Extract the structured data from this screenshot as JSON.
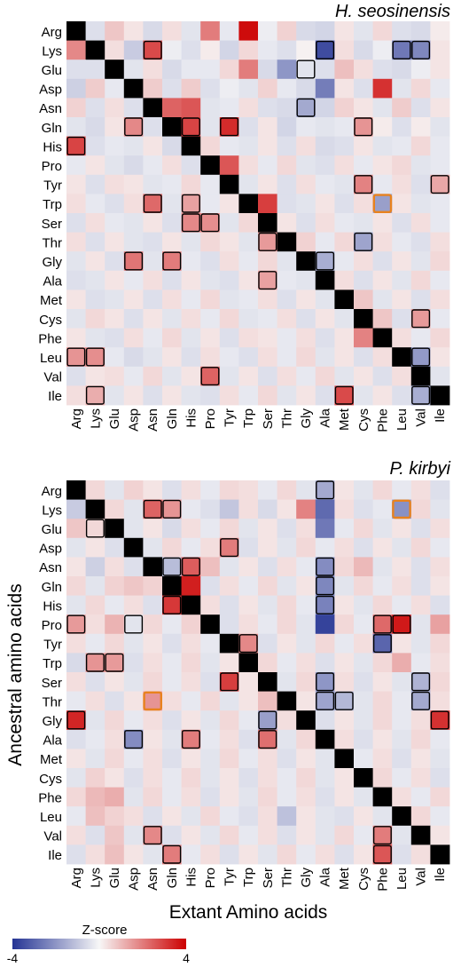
{
  "labels": {
    "y_axis": "Ancestral amino acids",
    "x_axis": "Extant Amino acids",
    "colorbar_title": "Z-score",
    "colorbar_min": "-4",
    "colorbar_max": "4"
  },
  "colors": {
    "negative": "#253494",
    "neutral": "#f7f7f7",
    "positive": "#cc0000",
    "diagonal": "#000000",
    "box_significant": "#000000",
    "box_highlight": "#e8821e"
  },
  "chart_data": [
    {
      "type": "heatmap",
      "title": "H. seosinensis",
      "rows": [
        "Arg",
        "Lys",
        "Glu",
        "Asp",
        "Asn",
        "Gln",
        "His",
        "Pro",
        "Tyr",
        "Trp",
        "Ser",
        "Thr",
        "Gly",
        "Ala",
        "Met",
        "Cys",
        "Phe",
        "Leu",
        "Val",
        "Ile"
      ],
      "cols": [
        "Arg",
        "Lys",
        "Glu",
        "Asp",
        "Asn",
        "Gln",
        "His",
        "Pro",
        "Tyr",
        "Trp",
        "Ser",
        "Thr",
        "Gly",
        "Ala",
        "Met",
        "Cys",
        "Phe",
        "Leu",
        "Val",
        "Ile"
      ],
      "zlim": [
        -4,
        4
      ],
      "z": [
        [
          null,
          -0.5,
          0.8,
          0.3,
          -0.6,
          0.4,
          -0.4,
          2.0,
          -0.3,
          3.8,
          -0.2,
          0.6,
          -0.6,
          -0.7,
          0.3,
          -0.4,
          0.5,
          -0.5,
          -0.6,
          0.2
        ],
        [
          1.8,
          null,
          0.4,
          -0.9,
          2.8,
          -0.2,
          -0.5,
          0.2,
          -0.7,
          0.5,
          -0.3,
          -0.5,
          0.1,
          -3.5,
          0.4,
          -0.6,
          -0.2,
          -2.6,
          -2.3,
          0.3
        ],
        [
          -0.5,
          -0.5,
          null,
          -0.4,
          0.4,
          -0.6,
          -0.3,
          -0.3,
          0.5,
          2.0,
          -0.6,
          -2.0,
          -0.4,
          -0.5,
          0.9,
          0.4,
          -0.5,
          -0.6,
          -0.2,
          0.3
        ],
        [
          -0.8,
          0.7,
          -0.3,
          null,
          0.7,
          -0.5,
          0.7,
          -0.5,
          -0.2,
          -0.4,
          0.6,
          -0.3,
          -0.6,
          -2.5,
          0.3,
          -0.5,
          3.2,
          -0.4,
          0.5,
          -0.3
        ],
        [
          0.6,
          -0.5,
          0.4,
          -0.5,
          null,
          2.4,
          2.6,
          -0.4,
          -0.3,
          0.4,
          -0.5,
          -0.6,
          -1.6,
          -0.7,
          0.6,
          0.3,
          -0.4,
          0.7,
          -0.5,
          0.3
        ],
        [
          -0.4,
          -0.6,
          0.3,
          1.8,
          -0.5,
          null,
          2.9,
          -0.4,
          3.3,
          -0.5,
          0.3,
          -0.7,
          -0.3,
          -0.4,
          -0.3,
          1.6,
          0.2,
          -0.5,
          0.2,
          -0.4
        ],
        [
          2.9,
          -0.5,
          -0.3,
          -0.4,
          0.3,
          -0.6,
          null,
          0.5,
          -0.3,
          -0.4,
          0.3,
          -0.5,
          0.4,
          -0.6,
          -0.5,
          0.3,
          -0.4,
          -0.3,
          0.5,
          -0.3
        ],
        [
          -0.3,
          0.3,
          -0.4,
          -0.6,
          -0.3,
          0.4,
          -0.5,
          null,
          2.6,
          0.4,
          -0.3,
          0.5,
          -0.4,
          -0.5,
          0.4,
          -0.3,
          0.3,
          0.5,
          -0.4,
          -0.3
        ],
        [
          0.3,
          -0.5,
          0.4,
          0.3,
          -0.4,
          -0.3,
          0.5,
          -0.3,
          null,
          -0.4,
          0.3,
          -0.5,
          0.4,
          -0.3,
          -0.4,
          1.9,
          -0.3,
          0.4,
          -0.5,
          1.3
        ],
        [
          0.4,
          -0.3,
          -0.5,
          0.4,
          2.3,
          -0.4,
          1.4,
          -0.3,
          0.3,
          null,
          3.0,
          -0.5,
          -0.4,
          0.3,
          -0.5,
          0.4,
          -1.8,
          0.3,
          -0.4,
          -0.3
        ],
        [
          -0.5,
          0.4,
          -0.3,
          -0.4,
          0.3,
          -0.5,
          1.8,
          1.7,
          -0.4,
          0.5,
          null,
          0.3,
          -0.5,
          0.4,
          -0.3,
          -0.4,
          0.3,
          -0.5,
          0.4,
          -0.3
        ],
        [
          0.4,
          -0.5,
          0.3,
          -0.4,
          -0.5,
          0.3,
          -0.4,
          0.5,
          0.3,
          -0.4,
          1.5,
          null,
          0.6,
          -0.3,
          0.5,
          -1.7,
          0.4,
          -0.3,
          -0.5,
          0.4
        ],
        [
          -0.4,
          0.3,
          -0.5,
          2.1,
          -0.4,
          2.0,
          -0.3,
          -0.5,
          0.4,
          -0.3,
          0.5,
          -0.4,
          null,
          -1.5,
          -0.3,
          0.4,
          -0.5,
          0.3,
          -0.4,
          0.5
        ],
        [
          -0.5,
          -0.4,
          0.3,
          -0.3,
          0.4,
          -0.5,
          0.3,
          -0.4,
          -0.5,
          0.3,
          1.4,
          -0.3,
          -0.4,
          null,
          0.4,
          -0.5,
          0.3,
          -0.4,
          0.5,
          -0.3
        ],
        [
          0.3,
          -0.5,
          -0.4,
          0.3,
          -0.5,
          0.4,
          -0.3,
          0.5,
          -0.4,
          -0.3,
          0.4,
          -0.5,
          0.3,
          -0.4,
          null,
          0.8,
          -0.4,
          0.3,
          -0.5,
          0.4
        ],
        [
          -0.4,
          0.5,
          0.3,
          -0.5,
          0.3,
          -0.4,
          0.4,
          -0.3,
          0.5,
          -0.4,
          -0.3,
          0.4,
          -0.5,
          0.3,
          -0.4,
          null,
          0.8,
          -0.5,
          1.5,
          -0.3
        ],
        [
          0.3,
          -0.4,
          -0.5,
          0.4,
          -0.3,
          0.5,
          -0.4,
          0.3,
          -0.5,
          0.4,
          0.3,
          -0.3,
          0.4,
          -0.5,
          0.3,
          1.9,
          null,
          0.4,
          -0.3,
          0.5
        ],
        [
          1.6,
          1.7,
          -0.3,
          -0.6,
          -0.4,
          0.3,
          -0.5,
          0.4,
          -0.3,
          -0.5,
          0.4,
          -0.3,
          0.5,
          -0.4,
          0.3,
          -0.5,
          0.4,
          null,
          -1.9,
          0.3
        ],
        [
          -0.5,
          0.3,
          0.4,
          -0.3,
          0.5,
          -0.4,
          0.3,
          2.4,
          -0.4,
          0.3,
          -0.5,
          0.4,
          -0.3,
          0.5,
          -0.4,
          0.3,
          -0.5,
          0.4,
          null,
          -0.4
        ],
        [
          0.4,
          1.2,
          -0.4,
          0.3,
          -0.5,
          0.3,
          -0.4,
          -0.5,
          0.4,
          -0.3,
          0.5,
          -0.4,
          0.3,
          -0.5,
          2.8,
          -0.4,
          0.3,
          -0.5,
          -1.5,
          null
        ]
      ],
      "boxed": [
        [
          1,
          4
        ],
        [
          1,
          13
        ],
        [
          1,
          17
        ],
        [
          1,
          18
        ],
        [
          2,
          12
        ],
        [
          4,
          12
        ],
        [
          5,
          3
        ],
        [
          5,
          6
        ],
        [
          5,
          8
        ],
        [
          5,
          15
        ],
        [
          6,
          0
        ],
        [
          8,
          15
        ],
        [
          8,
          19
        ],
        [
          9,
          4
        ],
        [
          9,
          6
        ],
        [
          10,
          6
        ],
        [
          10,
          7
        ],
        [
          11,
          10
        ],
        [
          11,
          15
        ],
        [
          12,
          3
        ],
        [
          12,
          5
        ],
        [
          12,
          13
        ],
        [
          13,
          10
        ],
        [
          15,
          18
        ],
        [
          17,
          0
        ],
        [
          17,
          1
        ],
        [
          17,
          18
        ],
        [
          18,
          7
        ],
        [
          19,
          1
        ],
        [
          19,
          14
        ],
        [
          19,
          18
        ]
      ],
      "highlight": [
        [
          9,
          16
        ]
      ]
    },
    {
      "type": "heatmap",
      "title": "P. kirbyi",
      "rows": [
        "Arg",
        "Lys",
        "Glu",
        "Asp",
        "Asn",
        "Gln",
        "His",
        "Pro",
        "Tyr",
        "Trp",
        "Ser",
        "Thr",
        "Gly",
        "Ala",
        "Met",
        "Cys",
        "Phe",
        "Leu",
        "Val",
        "Ile"
      ],
      "cols": [
        "Arg",
        "Lys",
        "Glu",
        "Asp",
        "Asn",
        "Gln",
        "His",
        "Pro",
        "Tyr",
        "Trp",
        "Ser",
        "Thr",
        "Gly",
        "Ala",
        "Met",
        "Cys",
        "Phe",
        "Leu",
        "Val",
        "Ile"
      ],
      "zlim": [
        -4,
        4
      ],
      "z": [
        [
          null,
          0.5,
          -0.4,
          0.6,
          0.3,
          -0.5,
          0.4,
          -0.3,
          0.5,
          0.4,
          -0.3,
          0.5,
          -0.4,
          -1.6,
          0.3,
          -0.4,
          0.5,
          -0.3,
          0.4,
          -0.5
        ],
        [
          -0.9,
          null,
          0.5,
          -0.4,
          2.4,
          1.6,
          -0.3,
          -0.5,
          -1.0,
          0.4,
          -0.6,
          0.3,
          1.9,
          -2.9,
          0.4,
          -0.5,
          -0.3,
          -2.1,
          0.5,
          -0.4
        ],
        [
          0.8,
          0.5,
          null,
          -0.4,
          0.3,
          -0.6,
          0.4,
          -0.3,
          0.5,
          -0.4,
          0.3,
          -0.5,
          0.4,
          -2.6,
          -0.3,
          0.5,
          -0.4,
          0.3,
          -0.5,
          0.4
        ],
        [
          -0.4,
          0.3,
          -0.5,
          null,
          -0.4,
          0.5,
          -0.3,
          0.4,
          2.0,
          -0.5,
          0.3,
          -0.4,
          0.5,
          -0.3,
          0.4,
          -0.5,
          0.3,
          -0.4,
          0.5,
          -0.3
        ],
        [
          0.3,
          -0.8,
          0.4,
          -0.5,
          null,
          -1.2,
          2.5,
          0.9,
          -0.4,
          0.3,
          -0.5,
          0.4,
          -0.3,
          -2.2,
          0.5,
          1.0,
          -0.4,
          0.3,
          -0.5,
          0.4
        ],
        [
          0.5,
          -0.4,
          0.6,
          0.8,
          0.6,
          null,
          3.5,
          -0.5,
          0.4,
          -0.3,
          0.5,
          -0.4,
          0.3,
          -2.3,
          -0.4,
          0.5,
          -0.3,
          0.4,
          -0.5,
          0.3
        ],
        [
          -0.4,
          0.5,
          -0.3,
          0.4,
          -0.5,
          3.1,
          null,
          0.4,
          -0.5,
          0.3,
          -0.4,
          0.5,
          -0.3,
          -2.4,
          0.3,
          -0.4,
          0.5,
          -0.3,
          0.4,
          -0.5
        ],
        [
          1.5,
          0.4,
          1.1,
          -0.4,
          0.5,
          -0.3,
          0.6,
          null,
          -0.5,
          0.4,
          -0.3,
          0.5,
          -0.4,
          -3.7,
          0.5,
          -0.3,
          2.3,
          3.6,
          -0.4,
          1.4
        ],
        [
          0.4,
          -0.3,
          0.5,
          -0.4,
          0.3,
          -0.5,
          0.4,
          -0.3,
          null,
          1.8,
          -0.5,
          0.3,
          -0.4,
          0.5,
          -0.3,
          0.4,
          -3.0,
          0.3,
          -0.4,
          0.5
        ],
        [
          -0.6,
          1.6,
          1.5,
          -0.5,
          0.4,
          -0.3,
          0.5,
          -0.4,
          0.3,
          null,
          0.5,
          -0.3,
          0.4,
          -0.5,
          0.3,
          -0.4,
          0.5,
          1.2,
          -0.3,
          0.4
        ],
        [
          0.4,
          -0.5,
          0.3,
          -0.4,
          0.5,
          -0.3,
          0.4,
          -0.5,
          3.0,
          0.3,
          null,
          -0.4,
          0.5,
          -2.0,
          0.4,
          -0.5,
          0.3,
          -0.4,
          -1.4,
          0.5
        ],
        [
          -0.3,
          0.4,
          -0.5,
          0.3,
          1.6,
          0.4,
          -0.3,
          0.5,
          -0.4,
          0.3,
          0.9,
          null,
          0.3,
          -1.7,
          -1.3,
          -0.4,
          0.5,
          -0.3,
          -1.6,
          0.4
        ],
        [
          3.4,
          -0.4,
          0.5,
          -0.3,
          0.4,
          -0.5,
          0.3,
          -0.4,
          0.5,
          -0.3,
          -1.8,
          0.4,
          null,
          -0.5,
          0.3,
          -0.4,
          0.5,
          -0.3,
          0.4,
          3.2
        ],
        [
          -0.5,
          -0.3,
          0.4,
          -2.2,
          0.3,
          -0.4,
          2.0,
          -0.3,
          0.4,
          -0.5,
          2.2,
          -0.4,
          0.5,
          null,
          0.4,
          -0.5,
          0.3,
          -0.4,
          0.5,
          -0.3
        ],
        [
          0.3,
          -0.4,
          0.5,
          -0.3,
          0.4,
          -0.5,
          0.3,
          -0.4,
          0.5,
          -0.3,
          0.4,
          -0.5,
          0.3,
          -0.4,
          null,
          -0.3,
          0.4,
          -0.5,
          0.3,
          -0.4
        ],
        [
          -0.4,
          0.6,
          0.3,
          -0.5,
          0.4,
          -0.3,
          0.5,
          -0.4,
          0.3,
          -0.5,
          0.4,
          -0.3,
          0.5,
          -0.4,
          0.3,
          null,
          0.5,
          -0.3,
          0.4,
          -0.5
        ],
        [
          0.5,
          1.0,
          1.2,
          -0.4,
          0.5,
          -0.3,
          0.4,
          -0.5,
          0.3,
          -0.4,
          0.5,
          -0.3,
          0.4,
          -0.5,
          0.3,
          -0.4,
          null,
          0.4,
          -0.3,
          0.5
        ],
        [
          -0.3,
          0.9,
          0.6,
          0.4,
          -0.5,
          0.3,
          -0.4,
          0.5,
          -0.3,
          -0.5,
          0.4,
          -1.1,
          0.3,
          -0.4,
          -0.5,
          0.3,
          -0.4,
          null,
          0.5,
          -0.3
        ],
        [
          0.4,
          -0.5,
          0.8,
          -0.4,
          1.8,
          -0.5,
          0.3,
          -0.4,
          0.5,
          -0.3,
          0.4,
          -0.5,
          0.3,
          -0.4,
          0.5,
          -0.3,
          2.0,
          -0.4,
          null,
          0.3
        ],
        [
          -0.5,
          0.4,
          0.9,
          0.3,
          -0.4,
          2.0,
          -0.3,
          0.4,
          -0.5,
          0.3,
          -0.4,
          0.5,
          -0.3,
          0.4,
          -0.5,
          0.3,
          2.6,
          -0.5,
          0.4,
          null
        ]
      ],
      "boxed": [
        [
          0,
          13
        ],
        [
          1,
          4
        ],
        [
          1,
          5
        ],
        [
          2,
          1
        ],
        [
          3,
          8
        ],
        [
          4,
          5
        ],
        [
          4,
          6
        ],
        [
          4,
          13
        ],
        [
          5,
          13
        ],
        [
          6,
          5
        ],
        [
          6,
          13
        ],
        [
          7,
          0
        ],
        [
          7,
          3
        ],
        [
          7,
          16
        ],
        [
          7,
          17
        ],
        [
          8,
          9
        ],
        [
          8,
          16
        ],
        [
          9,
          1
        ],
        [
          9,
          2
        ],
        [
          10,
          8
        ],
        [
          10,
          13
        ],
        [
          10,
          18
        ],
        [
          11,
          13
        ],
        [
          11,
          14
        ],
        [
          11,
          18
        ],
        [
          12,
          0
        ],
        [
          12,
          10
        ],
        [
          12,
          19
        ],
        [
          13,
          3
        ],
        [
          13,
          6
        ],
        [
          13,
          10
        ],
        [
          18,
          4
        ],
        [
          18,
          16
        ],
        [
          19,
          5
        ],
        [
          19,
          16
        ]
      ],
      "highlight": [
        [
          1,
          17
        ],
        [
          11,
          4
        ]
      ]
    }
  ]
}
